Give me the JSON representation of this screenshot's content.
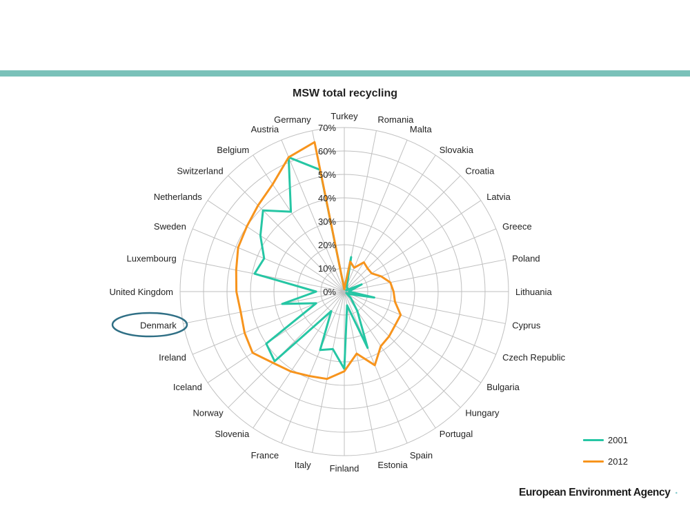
{
  "colors": {
    "band": "#7ac1b9",
    "series_2001": "#26c6a4",
    "series_2012": "#f7941d",
    "grid": "#bfbfbf",
    "highlight_ring": "#2f6f85",
    "logo_teal": "#1b9aa0"
  },
  "logo": {
    "text": "European Environment Agency"
  },
  "highlight": {
    "category": "Denmark",
    "shape": "ellipse-outline"
  },
  "chart_data": {
    "type": "radar",
    "title": "MSW total recycling",
    "rlim": [
      0,
      0.7
    ],
    "r_ticks": [
      0,
      0.1,
      0.2,
      0.3,
      0.4,
      0.5,
      0.6,
      0.7
    ],
    "r_tick_labels": [
      "0%",
      "10%",
      "20%",
      "30%",
      "40%",
      "50%",
      "60%",
      "70%"
    ],
    "categories": [
      "Turkey",
      "Romania",
      "Malta",
      "Slovakia",
      "Croatia",
      "Latvia",
      "Greece",
      "Poland",
      "Lithuania",
      "Cyprus",
      "Czech Republic",
      "Bulgaria",
      "Hungary",
      "Portugal",
      "Spain",
      "Estonia",
      "Finland",
      "Italy",
      "France",
      "Slovenia",
      "Norway",
      "Iceland",
      "Ireland",
      "Denmark",
      "United Kingdom",
      "Luxembourg",
      "Sweden",
      "Netherlands",
      "Switzerland",
      "Belgium",
      "Austria",
      "Germany"
    ],
    "grid": true,
    "legend_position": "bottom-right",
    "series": [
      {
        "name": "2001",
        "values": [
          0.01,
          0.15,
          0.03,
          0.02,
          0.02,
          0.01,
          0.08,
          0.03,
          0.02,
          0.13,
          0.03,
          0.01,
          0.04,
          0.1,
          0.26,
          0.06,
          0.33,
          0.25,
          0.27,
          0.1,
          0.42,
          0.4,
          0.13,
          0.27,
          0.12,
          0.39,
          0.37,
          0.43,
          0.49,
          0.41,
          0.62,
          0.53
        ]
      },
      {
        "name": "2012",
        "values": [
          0.01,
          0.13,
          0.11,
          0.15,
          0.14,
          0.14,
          0.17,
          0.2,
          0.21,
          0.22,
          0.26,
          0.26,
          0.27,
          0.28,
          0.34,
          0.27,
          0.34,
          0.38,
          0.39,
          0.41,
          0.43,
          0.47,
          0.46,
          0.45,
          0.46,
          0.47,
          0.49,
          0.5,
          0.52,
          0.55,
          0.62,
          0.65
        ]
      }
    ]
  }
}
